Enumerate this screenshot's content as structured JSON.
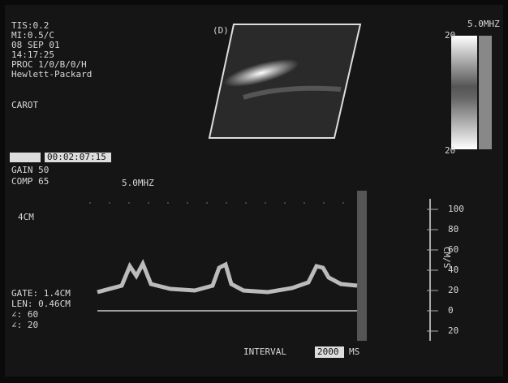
{
  "header": {
    "lines": [
      "TIS:0.2",
      "MI:0.5/C",
      "08 SEP 01",
      "14:17:25",
      "PROC 1/0/B/0/H",
      "Hewlett-Packard"
    ],
    "label": "CAROT"
  },
  "image": {
    "tag": "(D)"
  },
  "color_bar": {
    "frequency": "5.0MHZ",
    "top": "20",
    "bottom": "20"
  },
  "doppler_settings": {
    "timestamp": "00:02:07:15",
    "gain": "GAIN 50",
    "comp": "COMP 65",
    "frequency": "5.0MHZ",
    "depth": "4CM"
  },
  "gate": [
    "GATE:  1.4CM",
    "LEN: 0.46CM",
    "∠: 60",
    "∠: 20"
  ],
  "scale": {
    "labels": [
      "100",
      "80",
      "60",
      "40",
      "20",
      "0",
      "20"
    ],
    "unit": "CM/S"
  },
  "footer": {
    "interval_label": "INTERVAL",
    "interval_value": "2000",
    "interval_unit": "MS"
  }
}
